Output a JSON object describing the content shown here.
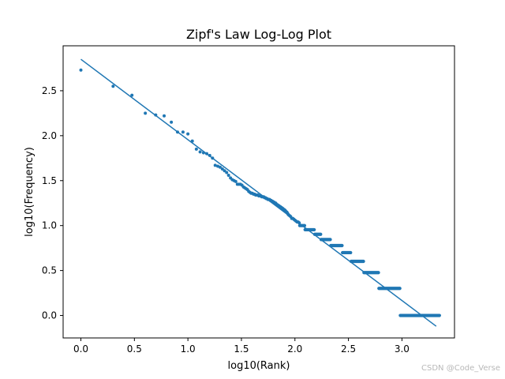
{
  "chart_data": {
    "type": "scatter",
    "title": "Zipf's Law Log-Log Plot",
    "xlabel": "log10(Rank)",
    "ylabel": "log10(Frequency)",
    "xlim": [
      -0.166,
      3.491
    ],
    "ylim": [
      -0.25,
      3.0
    ],
    "x_ticks": [
      "0.0",
      "0.5",
      "1.0",
      "1.5",
      "2.0",
      "2.5",
      "3.0"
    ],
    "y_ticks": [
      "0.0",
      "0.5",
      "1.0",
      "1.5",
      "2.0",
      "2.5"
    ],
    "grid": false,
    "legend": "none",
    "color": "#1f77b4",
    "series": [
      {
        "type": "scatter",
        "points": [
          [
            0.0,
            2.73
          ],
          [
            0.301,
            2.55
          ],
          [
            0.477,
            2.45
          ],
          [
            0.602,
            2.25
          ],
          [
            0.699,
            2.23
          ],
          [
            0.778,
            2.22
          ],
          [
            0.845,
            2.15
          ],
          [
            0.903,
            2.04
          ],
          [
            0.954,
            2.04
          ],
          [
            1.0,
            2.02
          ],
          [
            1.041,
            1.94
          ],
          [
            1.079,
            1.85
          ],
          [
            1.114,
            1.82
          ],
          [
            1.146,
            1.81
          ],
          [
            1.176,
            1.8
          ],
          [
            1.204,
            1.78
          ],
          [
            1.23,
            1.75
          ],
          [
            1.255,
            1.67
          ],
          [
            1.279,
            1.66
          ],
          [
            1.301,
            1.65
          ],
          [
            1.322,
            1.63
          ],
          [
            1.342,
            1.61
          ],
          [
            1.362,
            1.59
          ],
          [
            1.38,
            1.56
          ],
          [
            1.398,
            1.53
          ],
          [
            1.415,
            1.51
          ],
          [
            1.431,
            1.5
          ],
          [
            1.447,
            1.49
          ],
          [
            1.462,
            1.46
          ],
          [
            1.477,
            1.46
          ],
          [
            1.491,
            1.46
          ],
          [
            1.505,
            1.45
          ],
          [
            1.519,
            1.43
          ],
          [
            1.531,
            1.42
          ],
          [
            1.544,
            1.41
          ],
          [
            1.556,
            1.4
          ],
          [
            1.568,
            1.38
          ],
          [
            1.58,
            1.37
          ],
          [
            1.591,
            1.36
          ],
          [
            1.602,
            1.36
          ],
          [
            1.613,
            1.35
          ],
          [
            1.623,
            1.35
          ],
          [
            1.633,
            1.34
          ],
          [
            1.643,
            1.34
          ],
          [
            1.653,
            1.34
          ],
          [
            1.663,
            1.33
          ],
          [
            1.672,
            1.33
          ],
          [
            1.681,
            1.33
          ],
          [
            1.69,
            1.32
          ],
          [
            1.699,
            1.32
          ],
          [
            1.708,
            1.32
          ],
          [
            1.716,
            1.31
          ],
          [
            1.724,
            1.31
          ],
          [
            1.732,
            1.3
          ],
          [
            1.74,
            1.3
          ],
          [
            1.748,
            1.29
          ],
          [
            1.756,
            1.29
          ],
          [
            1.763,
            1.29
          ],
          [
            1.771,
            1.28
          ],
          [
            1.778,
            1.28
          ],
          [
            1.785,
            1.27
          ],
          [
            1.792,
            1.27
          ],
          [
            1.799,
            1.26
          ],
          [
            1.806,
            1.26
          ],
          [
            1.813,
            1.25
          ],
          [
            1.82,
            1.25
          ],
          [
            1.826,
            1.24
          ],
          [
            1.833,
            1.23
          ],
          [
            1.839,
            1.23
          ],
          [
            1.845,
            1.22
          ],
          [
            1.851,
            1.22
          ],
          [
            1.857,
            1.21
          ],
          [
            1.863,
            1.21
          ],
          [
            1.869,
            1.2
          ],
          [
            1.875,
            1.2
          ],
          [
            1.881,
            1.19
          ],
          [
            1.886,
            1.19
          ],
          [
            1.892,
            1.18
          ],
          [
            1.898,
            1.18
          ],
          [
            1.903,
            1.17
          ],
          [
            1.908,
            1.17
          ],
          [
            1.914,
            1.16
          ],
          [
            1.919,
            1.15
          ],
          [
            1.924,
            1.15
          ],
          [
            1.929,
            1.14
          ],
          [
            1.934,
            1.13
          ],
          [
            1.94,
            1.12
          ],
          [
            1.95,
            1.11
          ],
          [
            1.96,
            1.1
          ],
          [
            1.97,
            1.08
          ],
          [
            1.98,
            1.08
          ],
          [
            1.99,
            1.07
          ],
          [
            2.0,
            1.06
          ],
          [
            2.01,
            1.05
          ],
          [
            2.02,
            1.04
          ],
          [
            2.03,
            1.04
          ],
          [
            2.04,
            1.03
          ]
        ],
        "plateaus": [
          {
            "y": 1.0,
            "x_from": 2.045,
            "x_to": 2.09
          },
          {
            "y": 0.954,
            "x_from": 2.095,
            "x_to": 2.18
          },
          {
            "y": 0.903,
            "x_from": 2.185,
            "x_to": 2.24
          },
          {
            "y": 0.845,
            "x_from": 2.245,
            "x_to": 2.33
          },
          {
            "y": 0.778,
            "x_from": 2.335,
            "x_to": 2.44
          },
          {
            "y": 0.699,
            "x_from": 2.445,
            "x_to": 2.52
          },
          {
            "y": 0.602,
            "x_from": 2.525,
            "x_to": 2.64
          },
          {
            "y": 0.477,
            "x_from": 2.645,
            "x_to": 2.78
          },
          {
            "y": 0.301,
            "x_from": 2.785,
            "x_to": 2.98
          },
          {
            "y": 0.0,
            "x_from": 2.985,
            "x_to": 3.35
          }
        ]
      },
      {
        "type": "line",
        "points": [
          [
            0.0,
            2.85
          ],
          [
            3.32,
            -0.12
          ]
        ]
      }
    ]
  },
  "watermark": "CSDN @Code_Verse"
}
